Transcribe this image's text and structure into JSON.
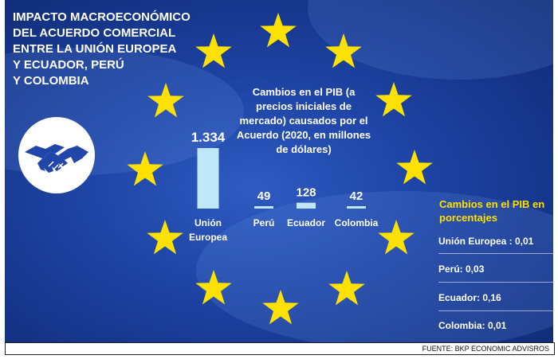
{
  "title_lines": [
    "IMPACTO MACROECONÓMICO",
    "DEL ACUERDO COMERCIAL",
    "ENTRE LA UNIÓN EUROPEA",
    "Y ECUADOR, PERÚ",
    "Y COLOMBIA"
  ],
  "colors": {
    "background": "#1f46a8",
    "bars": "#bfe7f7",
    "stars": "#ffe100",
    "highlight": "#ffe100",
    "text": "#ffffff"
  },
  "icon": "handshake-icon",
  "chart_data": {
    "type": "bar",
    "title": "Cambios en el PIB (a precios iniciales de mercado) causados por el Acuerdo (2020, en millones de dólares)",
    "categories": [
      "Unión Europea",
      "Perú",
      "Ecuador",
      "Colombia"
    ],
    "category_lines": [
      [
        "Unión",
        "Europea"
      ],
      [
        "Perú"
      ],
      [
        "Ecuador"
      ],
      [
        "Colombia"
      ]
    ],
    "values": [
      1334,
      49,
      128,
      42
    ],
    "value_labels": [
      "1.334",
      "49",
      "128",
      "42"
    ],
    "ylim": [
      0,
      1334
    ],
    "grid": false,
    "legend": "none"
  },
  "side_panel": {
    "title": "Cambios en el PIB en porcentajes",
    "items": [
      "Unión Europea : 0,01",
      "Perú: 0,03",
      "Ecuador: 0,16",
      "Colombia: 0,01"
    ]
  },
  "footer": "FUENTE: BKP ECONOMIC ADVISROS"
}
